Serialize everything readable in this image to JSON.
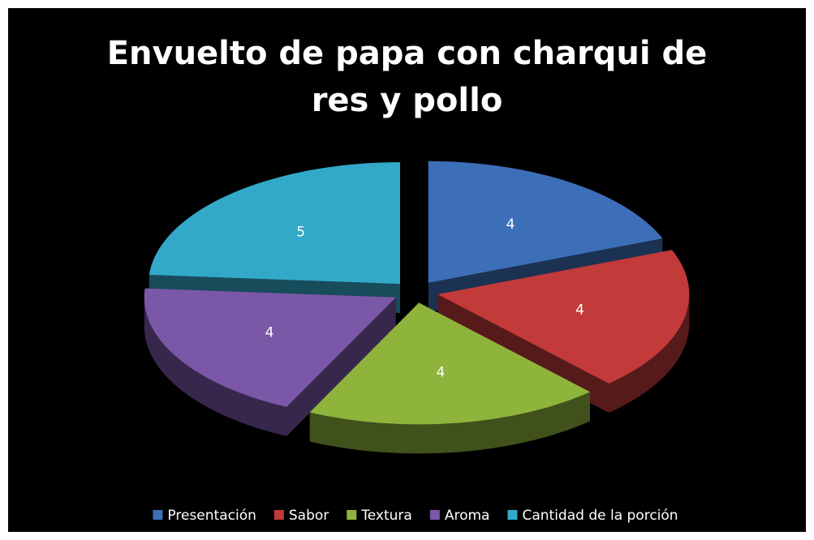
{
  "chart_data": {
    "type": "pie",
    "title": "Envuelto de papa con charqui de res y pollo",
    "categories": [
      "Presentación",
      "Sabor",
      "Textura",
      "Aroma",
      "Cantidad de la porción"
    ],
    "values": [
      4,
      4,
      4,
      4,
      5
    ],
    "colors": [
      "#3d6fb8",
      "#c23a3a",
      "#8fb43c",
      "#7b57a8",
      "#33a9ca"
    ],
    "legend": "bottom",
    "exploded": true,
    "three_d": true
  }
}
